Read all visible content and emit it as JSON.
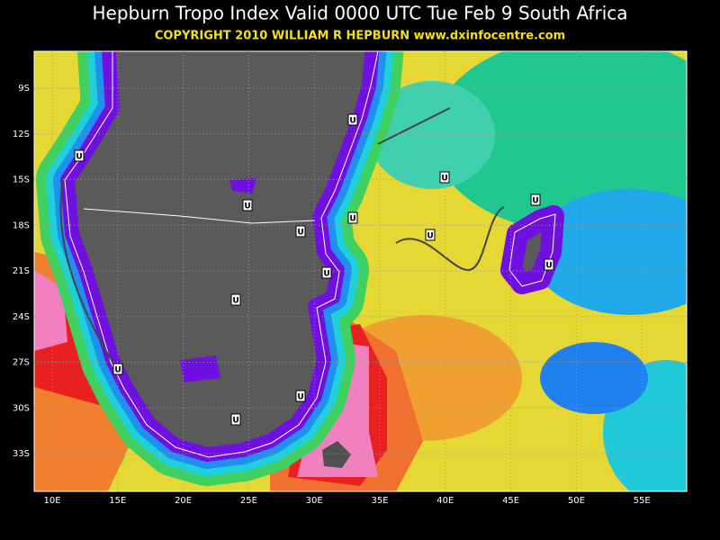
{
  "header": {
    "title": "Hepburn Tropo Index Valid 0000 UTC Tue Feb 9 South Africa",
    "copyright": "COPYRIGHT 2010   WILLIAM R HEPBURN   www.dxinfocentre.com"
  },
  "map": {
    "lat_labels": [
      "9S",
      "12S",
      "15S",
      "18S",
      "21S",
      "24S",
      "27S",
      "30S",
      "33S"
    ],
    "lon_labels": [
      "10E",
      "15E",
      "20E",
      "25E",
      "30E",
      "35E",
      "40E",
      "45E",
      "50E",
      "55E"
    ],
    "markers": [
      "U",
      "U",
      "U",
      "U",
      "U",
      "U",
      "U",
      "U",
      "U",
      "U",
      "U",
      "U",
      "U",
      "U"
    ]
  }
}
